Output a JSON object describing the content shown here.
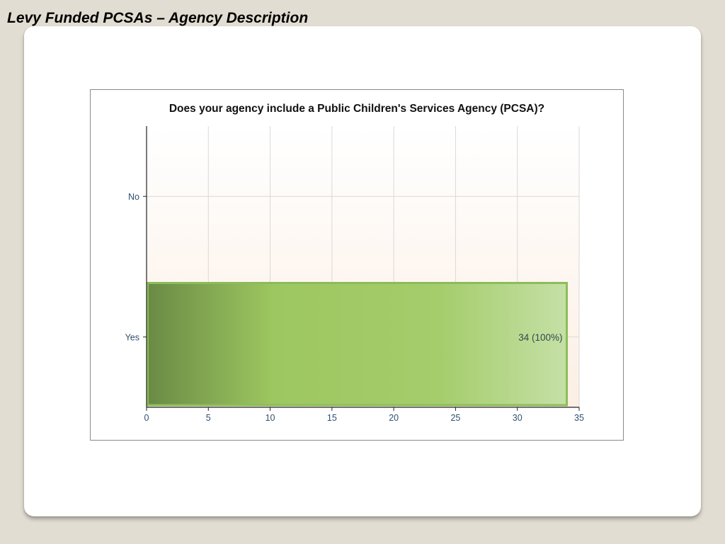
{
  "slide": {
    "title": "Levy Funded PCSAs – Agency Description"
  },
  "chart_data": {
    "type": "bar",
    "orientation": "horizontal",
    "title": "Does your agency include a Public Children's Services Agency (PCSA)?",
    "categories": [
      "No",
      "Yes"
    ],
    "values": [
      0,
      34
    ],
    "data_labels": [
      "",
      "34 (100%)"
    ],
    "xlim": [
      0,
      35
    ],
    "xticks": [
      0,
      5,
      10,
      15,
      20,
      25,
      30,
      35
    ],
    "xlabel": "",
    "ylabel": "",
    "grid": true,
    "legend": "none",
    "colors": {
      "bar_dark": "#6a8a44",
      "bar_mid": "#9dc760",
      "bar_light": "#c5e0a6",
      "bar_border": "#8cbc5a",
      "plot_bg_top": "#ffffff",
      "plot_bg_bottom": "#fcefe4"
    }
  }
}
